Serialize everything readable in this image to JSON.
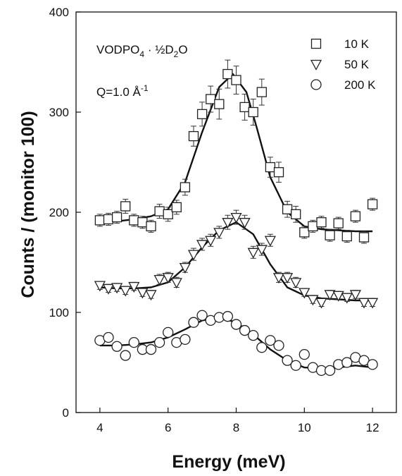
{
  "chart_data": {
    "type": "scatter",
    "title": "",
    "xlabel": "Energy (meV)",
    "ylabel": "Counts / (monitor 100)",
    "xlim": [
      3.3,
      12.7
    ],
    "ylim": [
      0,
      400
    ],
    "xticks": [
      4,
      6,
      8,
      10,
      12
    ],
    "yticks": [
      0,
      100,
      200,
      300,
      400
    ],
    "grid": false,
    "legend_position": "top-right",
    "annotations": {
      "compound_main": "VODPO",
      "compound_sub4": "4",
      "compound_mid": " · ½D",
      "compound_sub2": "2",
      "compound_end": "O",
      "q_main": "Q=1.0 Å",
      "q_sup": "-1"
    },
    "series": [
      {
        "name": "10 K",
        "marker": "square",
        "x": [
          4.0,
          4.25,
          4.5,
          4.75,
          5.0,
          5.25,
          5.5,
          5.75,
          6.0,
          6.25,
          6.5,
          6.75,
          7.0,
          7.25,
          7.5,
          7.75,
          8.0,
          8.25,
          8.5,
          8.75,
          9.0,
          9.25,
          9.5,
          9.75,
          10.0,
          10.25,
          10.5,
          10.75,
          11.0,
          11.25,
          11.5,
          11.75,
          12.0
        ],
        "y": [
          192,
          193,
          195,
          206,
          192,
          190,
          186,
          201,
          198,
          205,
          225,
          276,
          298,
          313,
          308,
          338,
          332,
          305,
          300,
          320,
          245,
          240,
          203,
          198,
          180,
          186,
          190,
          177,
          189,
          176,
          196,
          175,
          208
        ],
        "err": [
          6,
          6,
          6,
          7,
          6,
          6,
          6,
          7,
          7,
          7,
          8,
          10,
          12,
          13,
          15,
          14,
          14,
          13,
          13,
          13,
          10,
          10,
          8,
          8,
          6,
          6,
          6,
          6,
          6,
          6,
          6,
          6,
          6
        ],
        "fit_x": [
          4.0,
          4.5,
          5.0,
          5.5,
          6.0,
          6.5,
          7.0,
          7.5,
          7.9,
          8.3,
          8.6,
          9.0,
          9.5,
          10.0,
          10.5,
          11.0,
          11.5,
          12.0
        ],
        "fit_y": [
          190,
          191,
          193,
          196,
          203,
          230,
          280,
          325,
          338,
          320,
          285,
          235,
          200,
          186,
          183,
          182,
          181,
          181
        ]
      },
      {
        "name": "50 K",
        "marker": "triangle-down",
        "x": [
          4.0,
          4.25,
          4.5,
          4.75,
          5.0,
          5.25,
          5.5,
          5.75,
          6.0,
          6.25,
          6.5,
          6.75,
          7.0,
          7.25,
          7.5,
          7.75,
          8.0,
          8.25,
          8.5,
          8.75,
          9.0,
          9.25,
          9.5,
          9.75,
          10.0,
          10.25,
          10.5,
          10.75,
          11.0,
          11.25,
          11.5,
          11.75,
          12.0
        ],
        "y": [
          127,
          124,
          125,
          122,
          126,
          120,
          118,
          133,
          135,
          130,
          145,
          158,
          168,
          172,
          180,
          190,
          195,
          190,
          160,
          163,
          172,
          135,
          135,
          130,
          120,
          113,
          110,
          118,
          117,
          115,
          118,
          110,
          110
        ],
        "err": [
          4,
          4,
          4,
          4,
          4,
          4,
          4,
          5,
          5,
          5,
          5,
          6,
          6,
          6,
          6,
          7,
          7,
          7,
          6,
          6,
          6,
          5,
          5,
          5,
          4,
          4,
          4,
          4,
          4,
          4,
          4,
          4,
          4
        ],
        "fit_x": [
          4.0,
          4.5,
          5.0,
          5.5,
          6.0,
          6.5,
          7.0,
          7.5,
          8.0,
          8.5,
          9.0,
          9.5,
          10.0,
          10.5,
          11.0,
          11.5,
          12.0
        ],
        "fit_y": [
          125,
          124,
          124,
          125,
          130,
          145,
          165,
          182,
          190,
          178,
          148,
          125,
          117,
          114,
          113,
          112,
          112
        ]
      },
      {
        "name": "200 K",
        "marker": "circle",
        "x": [
          4.0,
          4.25,
          4.5,
          4.75,
          5.0,
          5.25,
          5.5,
          5.75,
          6.0,
          6.25,
          6.5,
          6.75,
          7.0,
          7.25,
          7.5,
          7.75,
          8.0,
          8.25,
          8.5,
          8.75,
          9.0,
          9.25,
          9.5,
          9.75,
          10.0,
          10.25,
          10.5,
          10.75,
          11.0,
          11.25,
          11.5,
          11.75,
          12.0
        ],
        "y": [
          72,
          75,
          66,
          57,
          70,
          63,
          63,
          70,
          80,
          70,
          73,
          90,
          97,
          92,
          95,
          96,
          88,
          82,
          77,
          65,
          72,
          67,
          52,
          47,
          58,
          45,
          42,
          42,
          48,
          50,
          55,
          52,
          48
        ],
        "fit_x": [
          4.0,
          4.5,
          5.0,
          5.5,
          6.0,
          6.5,
          7.0,
          7.5,
          8.0,
          8.5,
          9.0,
          9.5,
          10.0,
          10.5,
          11.0,
          11.5,
          12.0
        ],
        "fit_y": [
          67,
          67,
          68,
          70,
          75,
          83,
          92,
          95,
          90,
          78,
          63,
          52,
          45,
          44,
          45,
          47,
          45
        ]
      }
    ]
  }
}
